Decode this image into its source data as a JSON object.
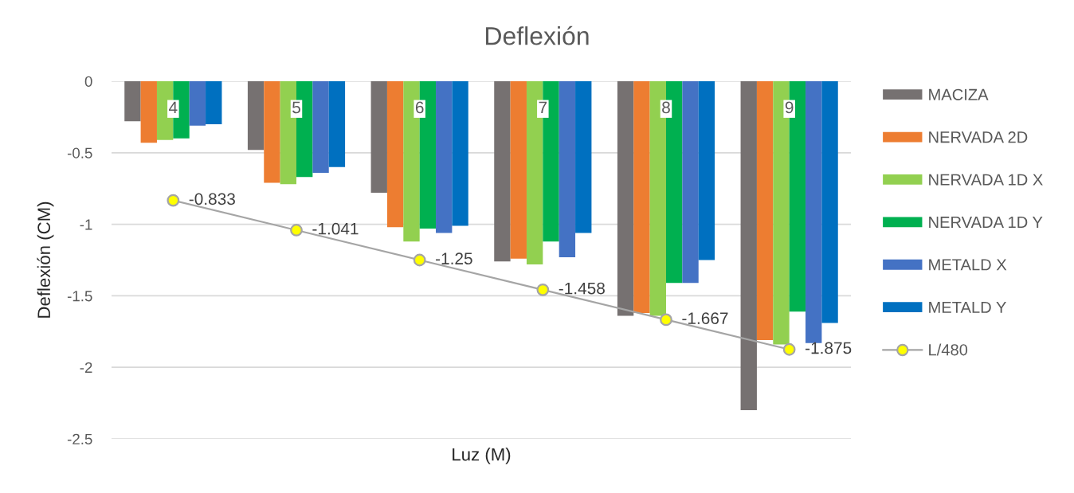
{
  "chart_data": {
    "type": "bar",
    "title": "Deflexión",
    "xlabel": "Luz (M)",
    "ylabel": "Deflexión (CM)",
    "categories": [
      "4",
      "5",
      "6",
      "7",
      "8",
      "9"
    ],
    "series": [
      {
        "name": "MACIZA",
        "color": "#767171",
        "values": [
          -0.28,
          -0.48,
          -0.78,
          -1.26,
          -1.64,
          -2.3
        ]
      },
      {
        "name": "NERVADA 2D",
        "color": "#ed7d31",
        "values": [
          -0.43,
          -0.71,
          -1.02,
          -1.24,
          -1.62,
          -1.81
        ]
      },
      {
        "name": "NERVADA 1D X",
        "color": "#92d050",
        "values": [
          -0.41,
          -0.72,
          -1.12,
          -1.28,
          -1.64,
          -1.84
        ]
      },
      {
        "name": "NERVADA 1D Y",
        "color": "#00b050",
        "values": [
          -0.4,
          -0.67,
          -1.03,
          -1.12,
          -1.41,
          -1.61
        ]
      },
      {
        "name": "METALD X",
        "color": "#4472c4",
        "values": [
          -0.31,
          -0.64,
          -1.06,
          -1.23,
          -1.41,
          -1.83
        ]
      },
      {
        "name": "METALD Y",
        "color": "#0070c0",
        "values": [
          -0.3,
          -0.6,
          -1.01,
          -1.06,
          -1.25,
          -1.69
        ]
      },
      {
        "name": "L/480",
        "type": "line",
        "color": "#a5a5a5",
        "colors": [
          "#ffff00",
          "#ffff00",
          "#ffff00",
          "#ffff00",
          "#ffff00",
          "#ffff00"
        ],
        "marker": "circle",
        "line_style": "solid",
        "values": [
          -0.833,
          -1.041,
          -1.25,
          -1.458,
          -1.667,
          -1.875
        ],
        "value_labels": [
          "-0.833",
          "-1.041",
          "-1.25",
          "-1.458",
          "-1.667",
          "-1.875"
        ]
      }
    ],
    "ylim": [
      -2.5,
      0
    ],
    "yticks": [
      0,
      -0.5,
      -1,
      -1.5,
      -2,
      -2.5
    ],
    "grid": "y",
    "legend": "right"
  }
}
